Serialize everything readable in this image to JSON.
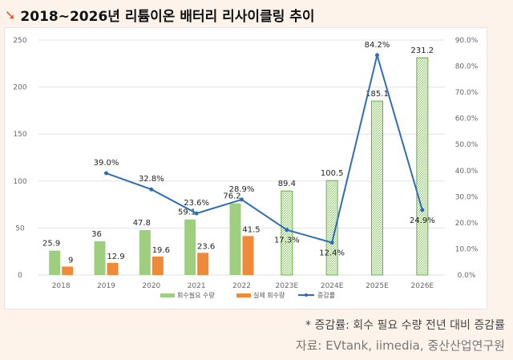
{
  "title": "2018~2026년 리튬이온 배터리 리사이클링 추이",
  "note": "* 증감률: 회수 필요 수량 전년 대비 증감률",
  "source": "자료: EVtank, iimedia, 중산산업연구원",
  "chart_data": {
    "type": "bar",
    "categories": [
      "2018",
      "2019",
      "2020",
      "2021",
      "2022",
      "2023E",
      "2024E",
      "2025E",
      "2026E"
    ],
    "series": [
      {
        "name": "회수필요 수량",
        "type": "bar",
        "color": "#9dcf7e",
        "values": [
          25.9,
          36,
          47.8,
          59.1,
          76.2,
          89.4,
          100.5,
          185.1,
          231.2
        ],
        "hatched_from": "2023E"
      },
      {
        "name": "실제 회수량",
        "type": "bar",
        "color": "#ef8a3a",
        "values": [
          9,
          12.9,
          19.6,
          23.6,
          41.5,
          null,
          null,
          null,
          null
        ]
      },
      {
        "name": "증감률",
        "type": "line",
        "axis": "right",
        "color": "#2e6eb5",
        "values": [
          null,
          39.0,
          32.8,
          23.6,
          28.9,
          17.3,
          12.4,
          84.2,
          24.9
        ]
      }
    ],
    "ylim": [
      0,
      250
    ],
    "yticks": [
      0,
      50,
      100,
      150,
      200,
      250
    ],
    "y2lim": [
      0,
      90
    ],
    "y2ticks": [
      "0.0%",
      "10.0%",
      "20.0%",
      "30.0%",
      "40.0%",
      "50.0%",
      "60.0%",
      "70.0%",
      "80.0%",
      "90.0%"
    ],
    "grid": true,
    "legend": "bottom"
  }
}
